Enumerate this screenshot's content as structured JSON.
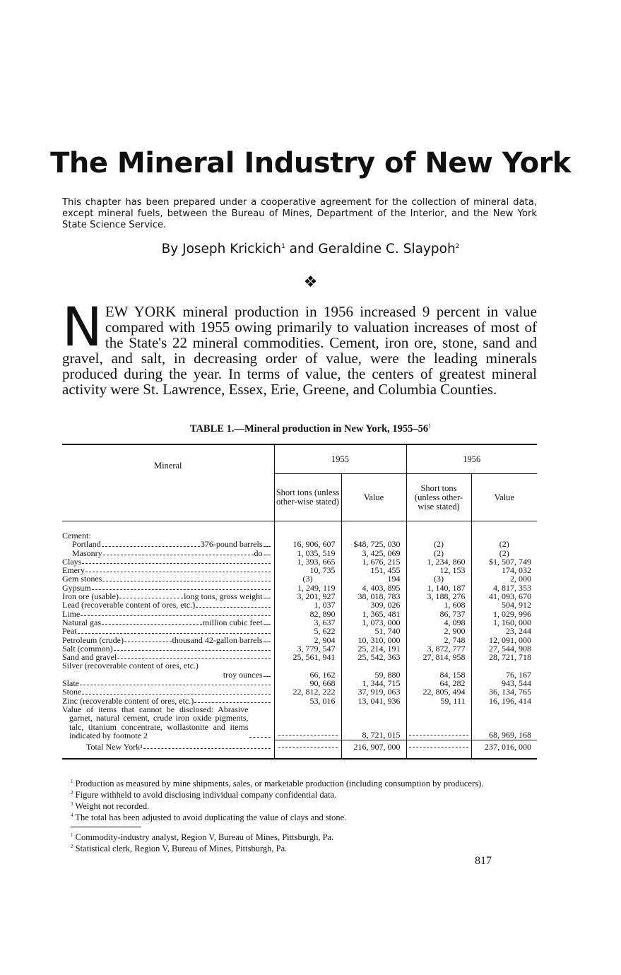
{
  "title": "The Mineral Industry of New York",
  "intro": "This chapter has been prepared under a cooperative agreement for the collection of mineral data, except mineral fuels, between the Bureau of Mines, Department of the Interior, and the New York State Science Service.",
  "byline": {
    "prefix": "By Joseph Krickich",
    "sup1": "1",
    "and": " and Geraldine C. Slaypoh",
    "sup2": "2"
  },
  "ornament": "❖",
  "body": {
    "dropcap": "N",
    "text": "EW YORK mineral production in 1956 increased 9 percent in value compared with 1955 owing primarily to valuation increases of most of the State's 22 mineral commodities. Cement, iron ore, stone, sand and gravel, and salt, in decreasing order of value, were the leading minerals produced during the year. In terms of value, the centers of greatest mineral activity were St. Lawrence, Essex, Erie, Greene, and Columbia Counties."
  },
  "table": {
    "caption": "TABLE 1.—Mineral production in New York, 1955–56",
    "caption_sup": "1",
    "header": {
      "mineral": "Mineral",
      "years": [
        "1955",
        "1956"
      ],
      "quantity": "Short tons (unless other-wise stated)",
      "value": "Value"
    },
    "rows": [
      {
        "label": "Cement:",
        "unit": "",
        "q1955": "",
        "v1955": "",
        "q1956": "",
        "v1956": "",
        "style": "plain"
      },
      {
        "label": "Portland",
        "unit": "376-pound barrels",
        "q1955": "16, 906, 607",
        "v1955": "$48, 725, 030",
        "q1956": "(2)",
        "v1956": "(2)",
        "style": "ind1"
      },
      {
        "label": "Masonry",
        "unit": "do",
        "q1955": "1, 035, 519",
        "v1955": "3, 425, 069",
        "q1956": "(2)",
        "v1956": "(2)",
        "style": "ind1"
      },
      {
        "label": "Clays",
        "unit": "",
        "q1955": "1, 393, 665",
        "v1955": "1, 676, 215",
        "q1956": "1, 234, 860",
        "v1956": "$1, 507, 749"
      },
      {
        "label": "Emery",
        "unit": "",
        "q1955": "10, 735",
        "v1955": "151, 455",
        "q1956": "12, 153",
        "v1956": "174, 032"
      },
      {
        "label": "Gem stones",
        "unit": "",
        "q1955": "(3)",
        "v1955": "194",
        "q1956": "(3)",
        "v1956": "2, 000"
      },
      {
        "label": "Gypsum",
        "unit": "",
        "q1955": "1, 249, 119",
        "v1955": "4, 403, 895",
        "q1956": "1, 140, 187",
        "v1956": "4, 817, 353"
      },
      {
        "label": "Iron ore (usable)",
        "unit": "long tons, gross weight",
        "q1955": "3, 201, 927",
        "v1955": "38, 018, 783",
        "q1956": "3, 188, 276",
        "v1956": "41, 093, 670"
      },
      {
        "label": "Lead (recoverable content of ores, etc.)",
        "unit": "",
        "q1955": "1, 037",
        "v1955": "309, 026",
        "q1956": "1, 608",
        "v1956": "504, 912"
      },
      {
        "label": "Lime",
        "unit": "",
        "q1955": "82, 890",
        "v1955": "1, 365, 481",
        "q1956": "86, 737",
        "v1956": "1, 029, 996"
      },
      {
        "label": "Natural gas",
        "unit": "million cubic feet",
        "q1955": "3, 637",
        "v1955": "1, 073, 000",
        "q1956": "4, 098",
        "v1956": "1, 160, 000"
      },
      {
        "label": "Peat",
        "unit": "",
        "q1955": "5, 622",
        "v1955": "51, 740",
        "q1956": "2, 900",
        "v1956": "23, 244"
      },
      {
        "label": "Petroleum (crude)",
        "unit": "thousand 42-gallon barrels",
        "q1955": "2, 904",
        "v1955": "10, 310, 000",
        "q1956": "2, 748",
        "v1956": "12, 091, 000"
      },
      {
        "label": "Salt (common)",
        "unit": "",
        "q1955": "3, 779, 547",
        "v1955": "25, 214, 191",
        "q1956": "3, 872, 777",
        "v1956": "27, 544, 908"
      },
      {
        "label": "Sand and gravel",
        "unit": "",
        "q1955": "25, 561, 941",
        "v1955": "25, 542, 363",
        "q1956": "27, 814, 958",
        "v1956": "28, 721, 718"
      },
      {
        "label": "Silver (recoverable content of ores, etc.)",
        "unit": "troy ounces",
        "q1955": "66, 162",
        "v1955": "59, 880",
        "q1956": "84, 158",
        "v1956": "76, 167",
        "style": "twoline"
      },
      {
        "label": "Slate",
        "unit": "",
        "q1955": "90, 668",
        "v1955": "1, 344, 715",
        "q1956": "64, 282",
        "v1956": "943, 544"
      },
      {
        "label": "Stone",
        "unit": "",
        "q1955": "22, 812, 222",
        "v1955": "37, 919, 063",
        "q1956": "22, 805, 494",
        "v1956": "36, 134, 765"
      },
      {
        "label": "Zinc (recoverable content of ores, etc.)",
        "unit": "",
        "q1955": "53, 016",
        "v1955": "13, 041, 936",
        "q1956": "59, 111",
        "v1956": "16, 196, 414"
      },
      {
        "label": "Value of items that cannot be disclosed: Abrasive garnet, natural cement, crude iron oxide pigments, talc, titanium concentrate, wollastonite and items indicated by footnote 2",
        "unit": "",
        "q1955": "—",
        "v1955": "8, 721, 015",
        "q1956": "—",
        "v1956": "68, 969, 168",
        "style": "hang"
      }
    ],
    "total": {
      "label": "Total New York",
      "sup": "4",
      "q1955": "—",
      "v1955": "216, 907, 000",
      "q1956": "—",
      "v1956": "237, 016, 000"
    }
  },
  "footnotes": [
    {
      "mark": "1",
      "text": "Production as measured by mine shipments, sales, or marketable production (including consumption by producers)."
    },
    {
      "mark": "2",
      "text": "Figure withheld to avoid disclosing individual company confidential data."
    },
    {
      "mark": "3",
      "text": "Weight not recorded."
    },
    {
      "mark": "4",
      "text": "The total has been adjusted to avoid duplicating the value of clays and stone."
    }
  ],
  "author_notes": [
    {
      "mark": "1",
      "text": "Commodity-industry analyst, Region V, Bureau of Mines, Pittsburgh, Pa."
    },
    {
      "mark": "2",
      "text": "Statistical clerk, Region V, Bureau of Mines, Pittsburgh, Pa."
    }
  ],
  "page_number": "817"
}
